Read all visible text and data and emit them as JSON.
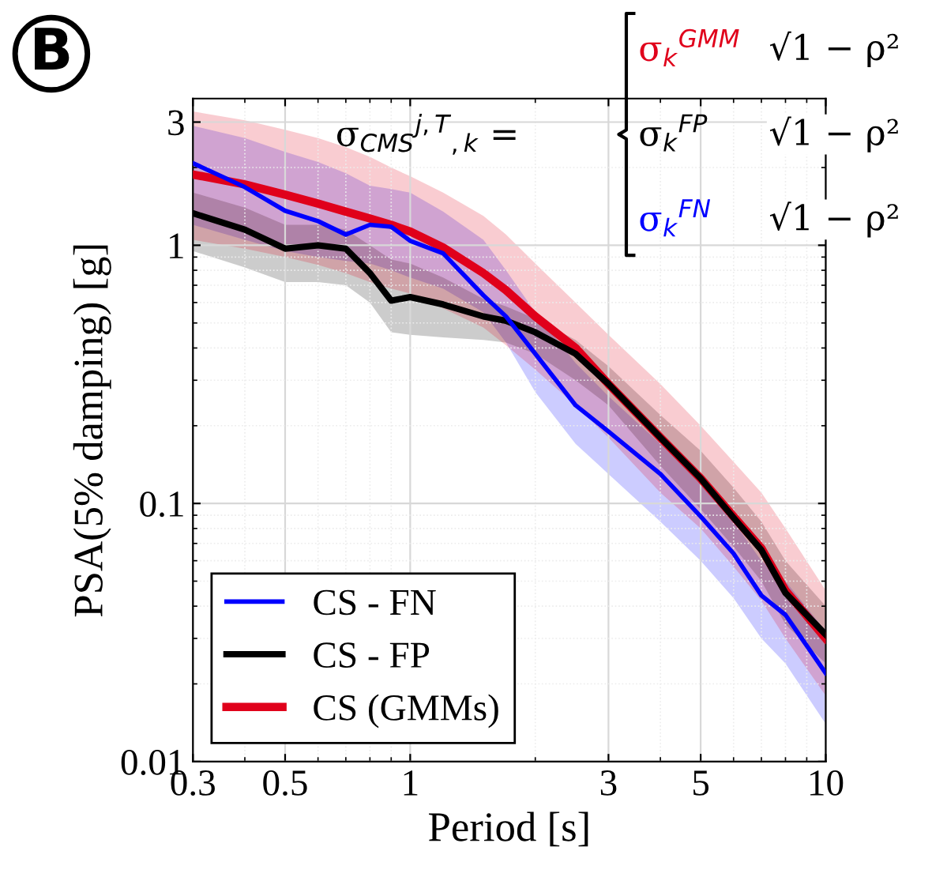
{
  "chart_data": {
    "type": "line",
    "xlabel": "Period [s]",
    "ylabel": "PSA(5% damping) [g]",
    "log": "xy",
    "grid": true,
    "legend": "bottom left",
    "line_style": "solid",
    "xlim": [
      0.3,
      10
    ],
    "ylim": [
      0.01,
      3.7
    ],
    "xticks": [
      0.3,
      0.5,
      1,
      3,
      5,
      10
    ],
    "yticks": [
      0.01,
      0.1,
      1,
      3
    ],
    "x": [
      0.3,
      0.4,
      0.5,
      0.6,
      0.7,
      0.8,
      0.9,
      1,
      1.2,
      1.5,
      1.7,
      2,
      2.5,
      3,
      4,
      5,
      6,
      7,
      8,
      10
    ],
    "series": [
      {
        "name": "CS - FN",
        "color": "#0000ff",
        "values": [
          2.08,
          1.68,
          1.36,
          1.24,
          1.1,
          1.2,
          1.18,
          1.04,
          0.93,
          0.64,
          0.53,
          0.38,
          0.24,
          0.19,
          0.13,
          0.089,
          0.064,
          0.044,
          0.037,
          0.022
        ],
        "lower": [
          1.2,
          1.05,
          0.95,
          0.9,
          0.87,
          0.85,
          0.8,
          0.75,
          0.68,
          0.55,
          0.42,
          0.27,
          0.17,
          0.13,
          0.085,
          0.06,
          0.043,
          0.03,
          0.024,
          0.014
        ],
        "upper": [
          2.9,
          2.6,
          2.3,
          2.1,
          1.9,
          1.7,
          1.65,
          1.6,
          1.35,
          1.05,
          0.8,
          0.55,
          0.35,
          0.26,
          0.17,
          0.12,
          0.085,
          0.06,
          0.05,
          0.032
        ]
      },
      {
        "name": "CS - FP",
        "color": "#000000",
        "values": [
          1.33,
          1.15,
          0.97,
          1.0,
          0.97,
          0.78,
          0.61,
          0.63,
          0.59,
          0.53,
          0.51,
          0.46,
          0.38,
          0.29,
          0.18,
          0.125,
          0.088,
          0.066,
          0.045,
          0.031
        ],
        "lower": [
          0.95,
          0.82,
          0.72,
          0.72,
          0.7,
          0.6,
          0.46,
          0.45,
          0.44,
          0.43,
          0.42,
          0.38,
          0.3,
          0.24,
          0.14,
          0.095,
          0.068,
          0.05,
          0.034,
          0.024
        ],
        "upper": [
          1.6,
          1.4,
          1.2,
          1.2,
          1.15,
          1.0,
          0.88,
          0.85,
          0.75,
          0.62,
          0.58,
          0.52,
          0.43,
          0.34,
          0.22,
          0.16,
          0.115,
          0.085,
          0.06,
          0.04
        ]
      },
      {
        "name": "CS (GMMs)",
        "color": "#e0001b",
        "values": [
          1.88,
          1.72,
          1.57,
          1.45,
          1.35,
          1.27,
          1.2,
          1.13,
          0.98,
          0.78,
          0.67,
          0.53,
          0.4,
          0.29,
          0.18,
          0.125,
          0.089,
          0.067,
          0.046,
          0.03
        ],
        "lower": [
          1.05,
          0.97,
          0.9,
          0.84,
          0.78,
          0.72,
          0.68,
          0.65,
          0.57,
          0.48,
          0.41,
          0.33,
          0.24,
          0.18,
          0.11,
          0.08,
          0.057,
          0.042,
          0.03,
          0.018
        ],
        "upper": [
          3.3,
          3.05,
          2.8,
          2.6,
          2.4,
          2.2,
          2.0,
          1.85,
          1.6,
          1.3,
          1.1,
          0.85,
          0.6,
          0.45,
          0.29,
          0.2,
          0.145,
          0.11,
          0.08,
          0.046
        ]
      }
    ],
    "annotations": [
      "B",
      "σ$_{CMS}$$^{j,T}$$_{,k}$ =",
      "σ$_{k}$$^{GMM}$",
      "σ$_{k}$$^{FP}$",
      "σ$_{k}$$^{FN}$",
      "√1 − ρ²",
      "√1 − ρ²",
      "√1 − ρ²"
    ]
  }
}
